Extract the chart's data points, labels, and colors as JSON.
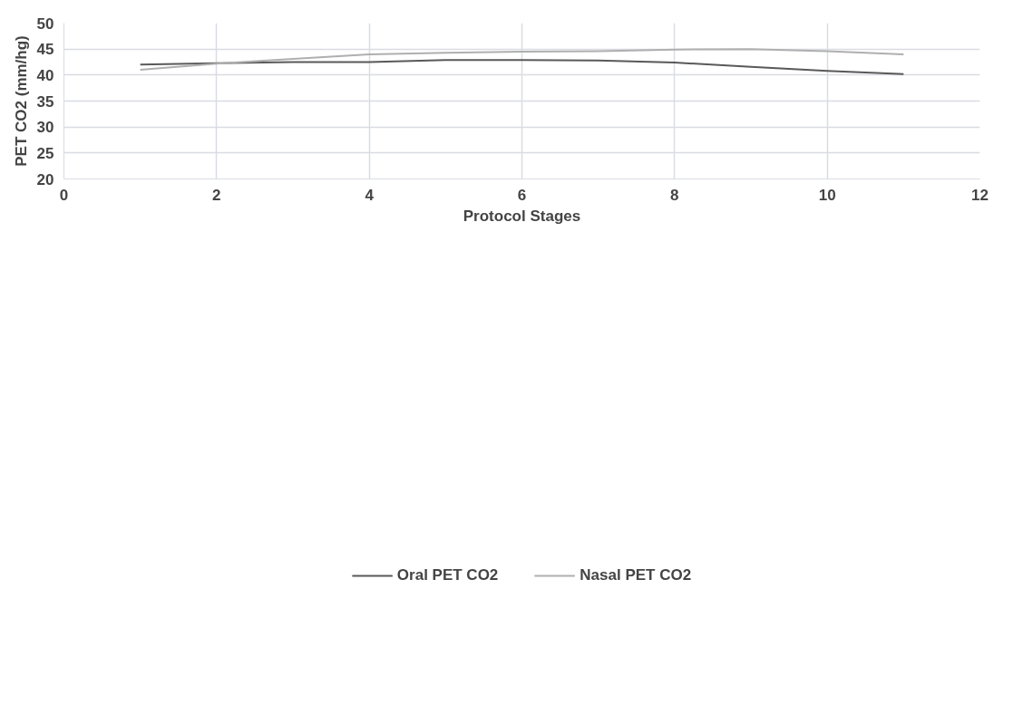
{
  "chart_data": {
    "type": "line",
    "xlabel": "Protocol Stages",
    "ylabel": "PET CO2 (mm/hg)",
    "x": [
      1,
      2,
      3,
      4,
      5,
      6,
      7,
      8,
      9,
      10,
      11
    ],
    "series": [
      {
        "name": "Oral PET CO2",
        "color": "#595959",
        "values": [
          42.0,
          42.3,
          42.5,
          42.5,
          42.9,
          42.9,
          42.8,
          42.4,
          41.6,
          40.8,
          40.2
        ]
      },
      {
        "name": "Nasal PET CO2",
        "color": "#afafaf",
        "values": [
          41.0,
          42.2,
          43.1,
          44.0,
          44.3,
          44.5,
          44.6,
          44.9,
          45.0,
          44.6,
          44.0
        ]
      }
    ],
    "xlim": [
      0,
      12
    ],
    "xticks": [
      0,
      2,
      4,
      6,
      8,
      10,
      12
    ],
    "ylim": [
      20,
      50
    ],
    "yticks": [
      20,
      25,
      30,
      35,
      40,
      45,
      50
    ],
    "grid": true,
    "legend": "bottom",
    "marker": "none",
    "line_style": "solid"
  }
}
